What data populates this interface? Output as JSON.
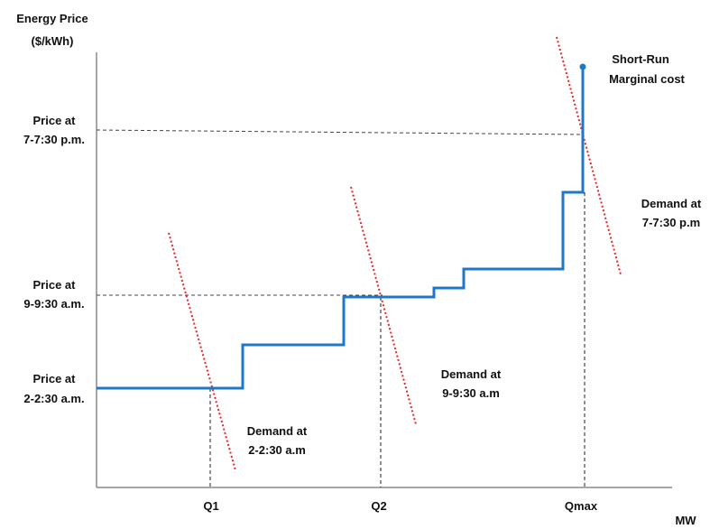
{
  "y_axis": {
    "title_line1": "Energy Price",
    "title_line2": "($/kWh)"
  },
  "x_axis": {
    "unit": "MW",
    "ticks": [
      "Q1",
      "Q2",
      "Qmax"
    ]
  },
  "price_labels": [
    {
      "line1": "Price at",
      "line2": "7-7:30 p.m."
    },
    {
      "line1": "Price at",
      "line2": "9-9:30 a.m."
    },
    {
      "line1": "Price at",
      "line2": "2-2:30 a.m."
    }
  ],
  "demand_labels": [
    {
      "line1": "Demand at",
      "line2": "2-2:30 a.m"
    },
    {
      "line1": "Demand at",
      "line2": "9-9:30 a.m"
    },
    {
      "line1": "Demand at",
      "line2": "7-7:30 p.m"
    }
  ],
  "supply_label": {
    "line1": "Short-Run",
    "line2": "Marginal cost"
  },
  "colors": {
    "supply_curve": "#1f77c8",
    "demand_curves": "#e8262a",
    "axes": "#888888",
    "guide_lines": "#333333",
    "text": "#111111"
  }
}
